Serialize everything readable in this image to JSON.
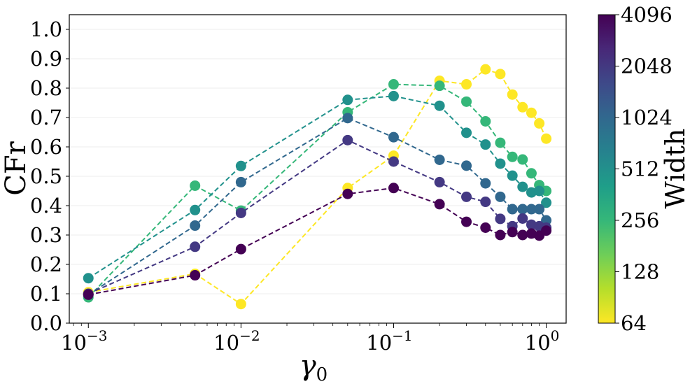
{
  "chart_data": {
    "type": "scatter",
    "xlabel": "γ",
    "xlabel_subscript": "0",
    "ylabel": "CFr",
    "xscale": "log",
    "xlim": [
      0.00075,
      1.35
    ],
    "ylim": [
      0.0,
      1.05
    ],
    "x_ticks": [
      {
        "value": 0.001,
        "base": "10",
        "exp": "−3"
      },
      {
        "value": 0.01,
        "base": "10",
        "exp": "−2"
      },
      {
        "value": 0.1,
        "base": "10",
        "exp": "−1"
      },
      {
        "value": 1,
        "base": "10",
        "exp": "0"
      }
    ],
    "y_ticks": [
      {
        "value": 0.0,
        "label": "0.0"
      },
      {
        "value": 0.1,
        "label": "0.1"
      },
      {
        "value": 0.2,
        "label": "0.2"
      },
      {
        "value": 0.3,
        "label": "0.3"
      },
      {
        "value": 0.4,
        "label": "0.4"
      },
      {
        "value": 0.5,
        "label": "0.5"
      },
      {
        "value": 0.6,
        "label": "0.6"
      },
      {
        "value": 0.7,
        "label": "0.7"
      },
      {
        "value": 0.8,
        "label": "0.8"
      },
      {
        "value": 0.9,
        "label": "0.9"
      },
      {
        "value": 1.0,
        "label": "1.0"
      }
    ],
    "grid": "horizontal",
    "line_style": "dashed",
    "colorbar": {
      "label": "Width",
      "ticks": [
        "4096",
        "2048",
        "1024",
        "512",
        "256",
        "128",
        "64"
      ],
      "colormap": "viridis",
      "stops": [
        "#440154",
        "#482878",
        "#3e4989",
        "#31688e",
        "#26828e",
        "#1f9e89",
        "#35b779",
        "#6ece58",
        "#b5de2b",
        "#fde725"
      ]
    },
    "series": [
      {
        "name": "64",
        "color": "#fde725",
        "x": [
          0.001,
          0.005,
          0.01,
          0.05,
          0.1,
          0.2,
          0.3,
          0.4,
          0.5,
          0.6,
          0.7,
          0.8,
          0.9,
          1.0
        ],
        "y": [
          0.105,
          0.168,
          0.065,
          0.46,
          0.57,
          0.825,
          0.813,
          0.864,
          0.848,
          0.778,
          0.735,
          0.716,
          0.68,
          0.628
        ]
      },
      {
        "name": "256",
        "color": "#35b779",
        "x": [
          0.001,
          0.005,
          0.01,
          0.05,
          0.1,
          0.2,
          0.3,
          0.4,
          0.5,
          0.6,
          0.7,
          0.8,
          0.9,
          1.0
        ],
        "y": [
          0.088,
          0.468,
          0.383,
          0.718,
          0.813,
          0.808,
          0.754,
          0.687,
          0.614,
          0.566,
          0.557,
          0.51,
          0.47,
          0.45
        ]
      },
      {
        "name": "512",
        "color": "#21918c",
        "x": [
          0.001,
          0.005,
          0.01,
          0.05,
          0.1,
          0.2,
          0.3,
          0.4,
          0.5,
          0.6,
          0.7,
          0.8,
          0.9,
          1.0
        ],
        "y": [
          0.153,
          0.385,
          0.535,
          0.76,
          0.773,
          0.74,
          0.648,
          0.608,
          0.543,
          0.502,
          0.464,
          0.445,
          0.45,
          0.41
        ]
      },
      {
        "name": "1024",
        "color": "#31688e",
        "x": [
          0.001,
          0.005,
          0.01,
          0.05,
          0.1,
          0.2,
          0.3,
          0.4,
          0.5,
          0.6,
          0.7,
          0.8,
          0.9,
          1.0
        ],
        "y": [
          0.097,
          0.332,
          0.48,
          0.698,
          0.633,
          0.556,
          0.536,
          0.476,
          0.43,
          0.388,
          0.388,
          0.388,
          0.388,
          0.35
        ]
      },
      {
        "name": "2048",
        "color": "#443983",
        "x": [
          0.001,
          0.005,
          0.01,
          0.05,
          0.1,
          0.2,
          0.3,
          0.4,
          0.5,
          0.6,
          0.7,
          0.8,
          0.9,
          1.0
        ],
        "y": [
          0.1,
          0.26,
          0.375,
          0.623,
          0.55,
          0.48,
          0.43,
          0.413,
          0.355,
          0.33,
          0.356,
          0.335,
          0.33,
          0.325
        ]
      },
      {
        "name": "4096",
        "color": "#440154",
        "x": [
          0.001,
          0.005,
          0.01,
          0.05,
          0.1,
          0.2,
          0.3,
          0.4,
          0.5,
          0.6,
          0.7,
          0.8,
          0.9,
          1.0
        ],
        "y": [
          0.097,
          0.163,
          0.252,
          0.44,
          0.46,
          0.405,
          0.345,
          0.325,
          0.3,
          0.31,
          0.3,
          0.305,
          0.298,
          0.315
        ]
      }
    ]
  }
}
